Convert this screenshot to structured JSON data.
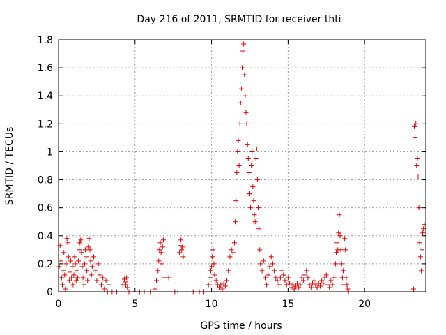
{
  "chart_data": {
    "type": "scatter",
    "title": "Day 216 of 2011, SRMTID for receiver thti",
    "xlabel": "GPS time / hours",
    "ylabel": "SRMTID / TECUs",
    "xlim": [
      0,
      24
    ],
    "ylim": [
      0,
      1.8
    ],
    "xticks": [
      0,
      5,
      10,
      15,
      20
    ],
    "xtick_labels": [
      "0",
      "5",
      "10",
      "15",
      "20"
    ],
    "yticks": [
      0,
      0.2,
      0.4,
      0.6,
      0.8,
      1,
      1.2,
      1.4,
      1.6,
      1.8
    ],
    "ytick_labels": [
      "0",
      "0.2",
      "0.4",
      "0.6",
      "0.8",
      "1",
      "1.2",
      "1.4",
      "1.6",
      "1.8"
    ],
    "grid": true,
    "marker": "+",
    "color": "#e00000",
    "series": [
      {
        "name": "SRMTID",
        "points": [
          [
            0.05,
            0.18
          ],
          [
            0.1,
            0.33
          ],
          [
            0.15,
            0.22
          ],
          [
            0.2,
            0.1
          ],
          [
            0.25,
            0.05
          ],
          [
            0.3,
            0.15
          ],
          [
            0.35,
            0.28
          ],
          [
            0.4,
            0.12
          ],
          [
            0.45,
            0.02
          ],
          [
            0.5,
            0.2
          ],
          [
            0.55,
            0.38
          ],
          [
            0.6,
            0.35
          ],
          [
            0.65,
            0.25
          ],
          [
            0.7,
            0.08
          ],
          [
            0.75,
            0.14
          ],
          [
            0.8,
            0.22
          ],
          [
            0.85,
            0.1
          ],
          [
            0.9,
            0.18
          ],
          [
            0.95,
            0.05
          ],
          [
            1.0,
            0.12
          ],
          [
            1.05,
            0.25
          ],
          [
            1.1,
            0.2
          ],
          [
            1.15,
            0.08
          ],
          [
            1.2,
            0.15
          ],
          [
            1.25,
            0.1
          ],
          [
            1.3,
            0.22
          ],
          [
            1.35,
            0.3
          ],
          [
            1.4,
            0.35
          ],
          [
            1.45,
            0.37
          ],
          [
            1.5,
            0.28
          ],
          [
            1.55,
            0.18
          ],
          [
            1.6,
            0.1
          ],
          [
            1.65,
            0.05
          ],
          [
            1.7,
            0.2
          ],
          [
            1.75,
            0.3
          ],
          [
            1.8,
            0.25
          ],
          [
            1.85,
            0.15
          ],
          [
            1.9,
            0.08
          ],
          [
            1.95,
            0.32
          ],
          [
            2.0,
            0.38
          ],
          [
            2.05,
            0.3
          ],
          [
            2.1,
            0.22
          ],
          [
            2.15,
            0.12
          ],
          [
            2.2,
            0.18
          ],
          [
            2.3,
            0.25
          ],
          [
            2.4,
            0.15
          ],
          [
            2.5,
            0.08
          ],
          [
            2.6,
            0.2
          ],
          [
            2.7,
            0.12
          ],
          [
            2.8,
            0.05
          ],
          [
            2.9,
            0.1
          ],
          [
            3.0,
            0.02
          ],
          [
            3.1,
            0.08
          ],
          [
            3.2,
            0.0
          ],
          [
            3.3,
            0.05
          ],
          [
            3.5,
            0.0
          ],
          [
            3.8,
            0.0
          ],
          [
            4.2,
            0.05
          ],
          [
            4.3,
            0.09
          ],
          [
            4.35,
            0.07
          ],
          [
            4.4,
            0.05
          ],
          [
            4.45,
            0.1
          ],
          [
            4.5,
            0.03
          ],
          [
            4.6,
            0.0
          ],
          [
            5.3,
            0.0
          ],
          [
            5.6,
            0.0
          ],
          [
            6.0,
            0.0
          ],
          [
            6.3,
            0.02
          ],
          [
            6.4,
            0.08
          ],
          [
            6.5,
            0.15
          ],
          [
            6.55,
            0.22
          ],
          [
            6.6,
            0.3
          ],
          [
            6.65,
            0.35
          ],
          [
            6.7,
            0.28
          ],
          [
            6.75,
            0.2
          ],
          [
            6.8,
            0.32
          ],
          [
            6.85,
            0.37
          ],
          [
            6.9,
            0.1
          ],
          [
            7.2,
            0.1
          ],
          [
            7.6,
            0.0
          ],
          [
            7.8,
            0.0
          ],
          [
            7.9,
            0.28
          ],
          [
            7.95,
            0.33
          ],
          [
            8.0,
            0.37
          ],
          [
            8.05,
            0.3
          ],
          [
            8.1,
            0.32
          ],
          [
            8.15,
            0.25
          ],
          [
            8.4,
            0.0
          ],
          [
            8.8,
            0.0
          ],
          [
            9.2,
            0.0
          ],
          [
            9.5,
            0.0
          ],
          [
            9.8,
            0.05
          ],
          [
            9.9,
            0.1
          ],
          [
            9.95,
            0.15
          ],
          [
            10.0,
            0.18
          ],
          [
            10.05,
            0.25
          ],
          [
            10.1,
            0.3
          ],
          [
            10.15,
            0.2
          ],
          [
            10.2,
            0.12
          ],
          [
            10.3,
            0.08
          ],
          [
            10.4,
            0.05
          ],
          [
            10.5,
            0.03
          ],
          [
            10.6,
            0.05
          ],
          [
            10.7,
            0.02
          ],
          [
            10.8,
            0.06
          ],
          [
            10.9,
            0.04
          ],
          [
            11.0,
            0.08
          ],
          [
            11.1,
            0.15
          ],
          [
            11.2,
            0.25
          ],
          [
            11.3,
            0.3
          ],
          [
            11.4,
            0.28
          ],
          [
            11.5,
            0.35
          ],
          [
            11.55,
            0.5
          ],
          [
            11.6,
            0.65
          ],
          [
            11.65,
            0.85
          ],
          [
            11.7,
            1.0
          ],
          [
            11.75,
            1.08
          ],
          [
            11.8,
            0.9
          ],
          [
            11.85,
            1.2
          ],
          [
            11.9,
            1.35
          ],
          [
            11.95,
            1.45
          ],
          [
            12.0,
            1.6
          ],
          [
            12.05,
            1.72
          ],
          [
            12.1,
            1.77
          ],
          [
            12.15,
            1.55
          ],
          [
            12.2,
            1.4
          ],
          [
            12.25,
            1.28
          ],
          [
            12.3,
            1.2
          ],
          [
            12.35,
            1.05
          ],
          [
            12.4,
            0.95
          ],
          [
            12.45,
            0.85
          ],
          [
            12.5,
            0.7
          ],
          [
            12.55,
            0.6
          ],
          [
            12.6,
            0.9
          ],
          [
            12.65,
            1.0
          ],
          [
            12.7,
            0.75
          ],
          [
            12.75,
            0.65
          ],
          [
            12.8,
            0.55
          ],
          [
            12.85,
            0.5
          ],
          [
            12.9,
            0.95
          ],
          [
            12.95,
            1.02
          ],
          [
            13.0,
            0.8
          ],
          [
            13.05,
            0.6
          ],
          [
            13.1,
            0.45
          ],
          [
            13.15,
            0.3
          ],
          [
            13.2,
            0.2
          ],
          [
            13.3,
            0.15
          ],
          [
            13.4,
            0.22
          ],
          [
            13.5,
            0.1
          ],
          [
            13.6,
            0.05
          ],
          [
            13.7,
            0.12
          ],
          [
            13.8,
            0.18
          ],
          [
            13.9,
            0.25
          ],
          [
            14.0,
            0.2
          ],
          [
            14.1,
            0.15
          ],
          [
            14.2,
            0.1
          ],
          [
            14.3,
            0.08
          ],
          [
            14.4,
            0.05
          ],
          [
            14.5,
            0.1
          ],
          [
            14.6,
            0.15
          ],
          [
            14.7,
            0.12
          ],
          [
            14.8,
            0.08
          ],
          [
            14.9,
            0.05
          ],
          [
            15.0,
            0.1
          ],
          [
            15.1,
            0.06
          ],
          [
            15.2,
            0.03
          ],
          [
            15.3,
            0.05
          ],
          [
            15.4,
            0.02
          ],
          [
            15.5,
            0.04
          ],
          [
            15.6,
            0.06
          ],
          [
            15.7,
            0.03
          ],
          [
            15.8,
            0.05
          ],
          [
            15.9,
            0.1
          ],
          [
            16.0,
            0.08
          ],
          [
            16.1,
            0.12
          ],
          [
            16.2,
            0.15
          ],
          [
            16.3,
            0.1
          ],
          [
            16.4,
            0.05
          ],
          [
            16.5,
            0.03
          ],
          [
            16.6,
            0.06
          ],
          [
            16.7,
            0.08
          ],
          [
            16.8,
            0.05
          ],
          [
            16.9,
            0.03
          ],
          [
            17.0,
            0.06
          ],
          [
            17.1,
            0.04
          ],
          [
            17.2,
            0.08
          ],
          [
            17.3,
            0.06
          ],
          [
            17.4,
            0.1
          ],
          [
            17.5,
            0.12
          ],
          [
            17.6,
            0.05
          ],
          [
            17.7,
            0.03
          ],
          [
            17.8,
            0.08
          ],
          [
            17.9,
            0.05
          ],
          [
            18.0,
            0.1
          ],
          [
            18.1,
            0.2
          ],
          [
            18.15,
            0.28
          ],
          [
            18.2,
            0.35
          ],
          [
            18.25,
            0.3
          ],
          [
            18.3,
            0.42
          ],
          [
            18.35,
            0.55
          ],
          [
            18.4,
            0.4
          ],
          [
            18.45,
            0.3
          ],
          [
            18.5,
            0.2
          ],
          [
            18.55,
            0.1
          ],
          [
            18.6,
            0.15
          ],
          [
            18.65,
            0.05
          ],
          [
            18.7,
            0.38
          ],
          [
            18.75,
            0.3
          ],
          [
            18.8,
            0.1
          ],
          [
            18.85,
            0.05
          ],
          [
            18.9,
            0.02
          ],
          [
            18.95,
            0.0
          ],
          [
            23.2,
            0.02
          ],
          [
            23.25,
            1.18
          ],
          [
            23.3,
            1.1
          ],
          [
            23.35,
            1.2
          ],
          [
            23.4,
            0.9
          ],
          [
            23.45,
            0.95
          ],
          [
            23.5,
            0.82
          ],
          [
            23.55,
            0.6
          ],
          [
            23.6,
            0.35
          ],
          [
            23.65,
            0.25
          ],
          [
            23.7,
            0.15
          ],
          [
            23.75,
            0.3
          ],
          [
            23.8,
            0.42
          ],
          [
            23.85,
            0.45
          ],
          [
            23.9,
            0.48
          ]
        ]
      }
    ]
  }
}
